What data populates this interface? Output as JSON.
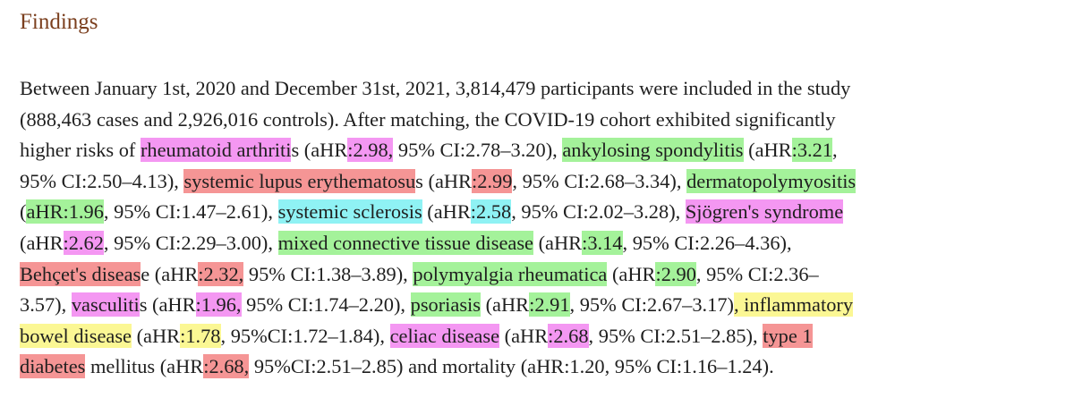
{
  "heading": "Findings",
  "lines": [
    [
      {
        "text": "Between January 1st, 2020 and December 31st, 2021, 3,814,479 participants were included in the study",
        "hl": ""
      }
    ],
    [
      {
        "text": "(888,463 cases and 2,926,016 controls). After matching, the COVID-19 cohort exhibited significantly",
        "hl": ""
      }
    ],
    [
      {
        "text": "higher risks of ",
        "hl": ""
      },
      {
        "text": "rheumatoid arthriti",
        "hl": "magenta"
      },
      {
        "text": "s (aHR",
        "hl": ""
      },
      {
        "text": ":2.98,",
        "hl": "magenta"
      },
      {
        "text": " 95% CI:2.78–3.20), ",
        "hl": ""
      },
      {
        "text": "ankylosing spondylitis",
        "hl": "green"
      },
      {
        "text": " (aHR",
        "hl": ""
      },
      {
        "text": ":3.21",
        "hl": "green"
      },
      {
        "text": ",",
        "hl": ""
      }
    ],
    [
      {
        "text": "95% CI:2.50–4.13), ",
        "hl": ""
      },
      {
        "text": "systemic lupus erythematosu",
        "hl": "red"
      },
      {
        "text": "s (aHR",
        "hl": ""
      },
      {
        "text": ":2.99",
        "hl": "red"
      },
      {
        "text": ", 95% CI:2.68–3.34), ",
        "hl": ""
      },
      {
        "text": "dermatopolymyositis",
        "hl": "green"
      }
    ],
    [
      {
        "text": "(",
        "hl": ""
      },
      {
        "text": "aHR:1.96",
        "hl": "green"
      },
      {
        "text": ", 95% CI:1.47–2.61), ",
        "hl": ""
      },
      {
        "text": "systemic sclerosis",
        "hl": "cyan"
      },
      {
        "text": " (aHR",
        "hl": ""
      },
      {
        "text": ":2.58",
        "hl": "cyan"
      },
      {
        "text": ", 95% CI:2.02–3.28), ",
        "hl": ""
      },
      {
        "text": "Sjögren's syndrome",
        "hl": "magenta"
      }
    ],
    [
      {
        "text": "(aHR",
        "hl": ""
      },
      {
        "text": ":2.62",
        "hl": "magenta"
      },
      {
        "text": ", 95% CI:2.29–3.00), ",
        "hl": ""
      },
      {
        "text": "mixed connective tissue disease",
        "hl": "green"
      },
      {
        "text": " (aHR",
        "hl": ""
      },
      {
        "text": ":3.14",
        "hl": "green"
      },
      {
        "text": ", 95% CI:2.26–4.36),",
        "hl": ""
      }
    ],
    [
      {
        "text": "Behçet's diseas",
        "hl": "red"
      },
      {
        "text": "e (aHR",
        "hl": ""
      },
      {
        "text": ":2.32,",
        "hl": "red"
      },
      {
        "text": " 95% CI:1.38–3.89), ",
        "hl": ""
      },
      {
        "text": "polymyalgia rheumatica",
        "hl": "green"
      },
      {
        "text": " (aHR",
        "hl": ""
      },
      {
        "text": ":2.90",
        "hl": "green"
      },
      {
        "text": ", 95% CI:2.36–",
        "hl": ""
      }
    ],
    [
      {
        "text": "3.57), ",
        "hl": ""
      },
      {
        "text": "vasculiti",
        "hl": "magenta"
      },
      {
        "text": "s (aHR",
        "hl": ""
      },
      {
        "text": ":1.96,",
        "hl": "magenta"
      },
      {
        "text": " 95% CI:1.74–2.20), ",
        "hl": ""
      },
      {
        "text": "psoriasis",
        "hl": "green"
      },
      {
        "text": " (aHR",
        "hl": ""
      },
      {
        "text": ":2.91",
        "hl": "green"
      },
      {
        "text": ", 95% CI:2.67–3.17)",
        "hl": ""
      },
      {
        "text": ", inflammatory",
        "hl": "yellow"
      }
    ],
    [
      {
        "text": "bowel disease",
        "hl": "yellow"
      },
      {
        "text": " (aHR",
        "hl": ""
      },
      {
        "text": ":1.78",
        "hl": "yellow"
      },
      {
        "text": ", 95%CI:1.72–1.84), ",
        "hl": ""
      },
      {
        "text": "celiac disease",
        "hl": "magenta"
      },
      {
        "text": " (aHR",
        "hl": ""
      },
      {
        "text": ":2.68",
        "hl": "magenta"
      },
      {
        "text": ", 95% CI:2.51–2.85), ",
        "hl": ""
      },
      {
        "text": "type 1",
        "hl": "red"
      }
    ],
    [
      {
        "text": "diabetes",
        "hl": "red"
      },
      {
        "text": " mellitus (aHR",
        "hl": ""
      },
      {
        "text": ":2.68,",
        "hl": "red"
      },
      {
        "text": " 95%CI:2.51–2.85) and mortality (aHR:1.20, 95% CI:1.16–1.24).",
        "hl": ""
      }
    ]
  ],
  "highlight_colors": {
    "magenta": "#f497f2",
    "green": "#a4f29a",
    "red": "#f59595",
    "cyan": "#8ff2f4",
    "yellow": "#fbf794"
  }
}
